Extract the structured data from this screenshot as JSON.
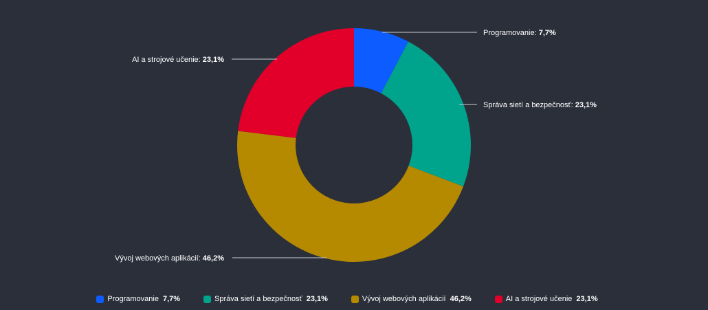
{
  "chart_data": {
    "type": "pie",
    "title": "",
    "donut": true,
    "categories": [
      "Programovanie",
      "Správa sietí a bezpečnosť",
      "Vývoj webových aplikácií",
      "AI a strojové učenie"
    ],
    "values": [
      7.7,
      23.1,
      46.2,
      23.1
    ],
    "value_labels": [
      "7,7%",
      "23,1%",
      "46,2%",
      "23,1%"
    ],
    "colors": [
      "#0c5cff",
      "#00a38b",
      "#b58900",
      "#e2002b"
    ],
    "legend_placement": "bottom"
  },
  "background_color": "#2b2f3a",
  "legend": {
    "items": [
      {
        "name": "Programovanie",
        "value": "7,7%",
        "color": "#0c5cff"
      },
      {
        "name": "Správa sietí a bezpečnosť",
        "value": "23,1%",
        "color": "#00a38b"
      },
      {
        "name": "Vývoj webových aplikácií",
        "value": "46,2%",
        "color": "#b58900"
      },
      {
        "name": "AI a strojové učenie",
        "value": "23,1%",
        "color": "#e2002b"
      }
    ]
  }
}
